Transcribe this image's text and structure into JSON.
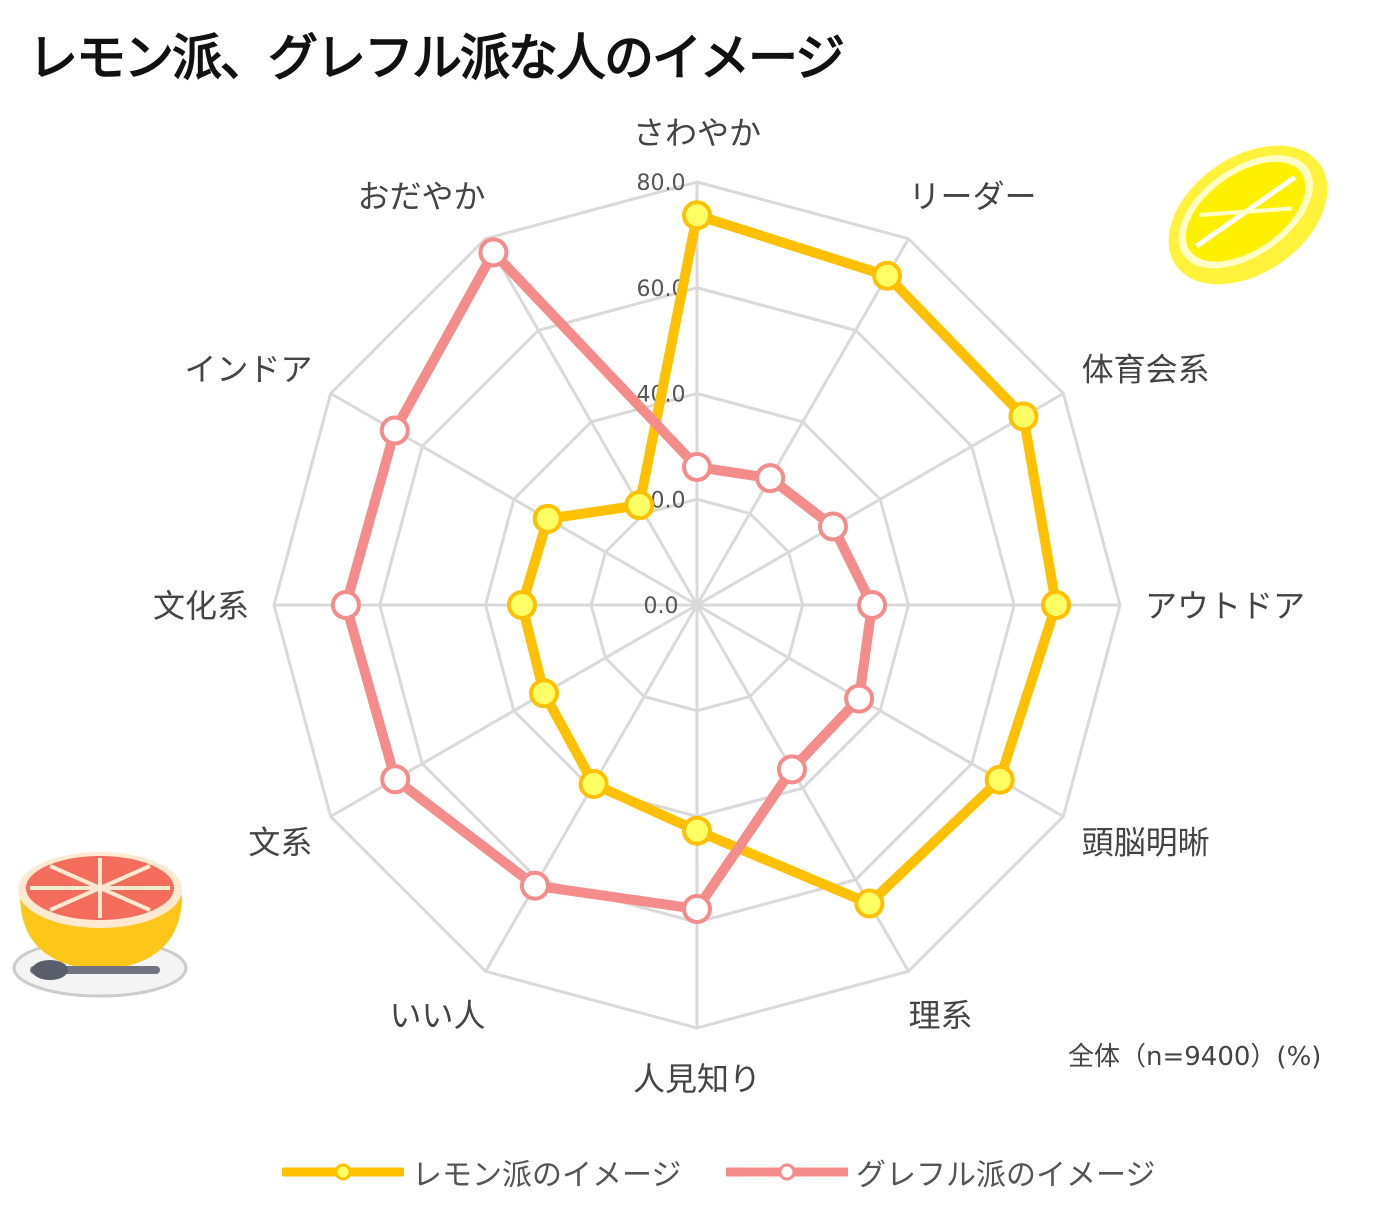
{
  "title": "レモン派、グレフル派な人のイメージ",
  "note": "全体（n=9400）(%)",
  "colors": {
    "lemon_line": "#FFC000",
    "lemon_marker": "#FFFF66",
    "grapefruit_line": "#F48C8C",
    "grapefruit_marker": "#FFFFFF",
    "grid": "#D9D9D9"
  },
  "chart_data": {
    "type": "radar",
    "title": "レモン派、グレフル派な人のイメージ",
    "categories": [
      "さわやか",
      "リーダー",
      "体育会系",
      "アウトドア",
      "頭脳明晰",
      "理系",
      "人見知り",
      "いい人",
      "文系",
      "文化系",
      "インドア",
      "おだやか"
    ],
    "rlim": [
      0,
      80
    ],
    "ticks": [
      "0.0",
      "20.0",
      "40.0",
      "60.0",
      "80.0"
    ],
    "tick_values": [
      0,
      20,
      40,
      60,
      80
    ],
    "grid": true,
    "legend_position": "bottom",
    "series": [
      {
        "name": "レモン派のイメージ",
        "values": [
          73.7,
          71.9,
          71.3,
          67.9,
          66.1,
          65.2,
          42.7,
          39.1,
          33.4,
          33.1,
          32.6,
          21.8
        ]
      },
      {
        "name": "グレフル派のイメージ",
        "values": [
          26.1,
          27.7,
          29.7,
          33.1,
          35.4,
          35.9,
          57.5,
          61.3,
          65.9,
          66.4,
          66.0,
          77.0
        ]
      }
    ]
  }
}
